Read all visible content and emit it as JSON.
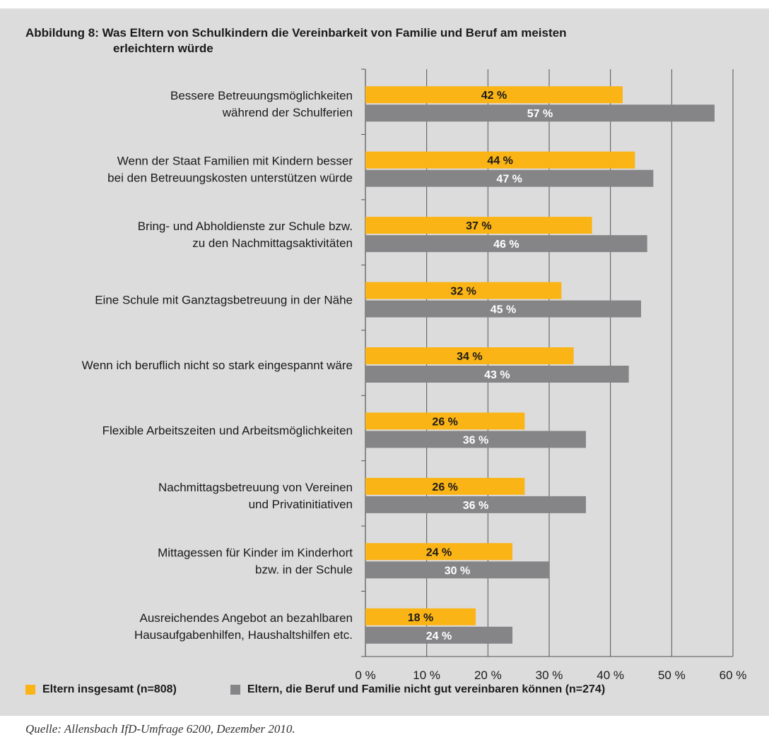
{
  "figure": {
    "title_line1": "Abbildung 8: Was Eltern von Schulkindern die Vereinbarkeit von Familie und Beruf am meisten",
    "title_line2": "erleichtern würde",
    "source": "Quelle: Allensbach IfD-Umfrage 6200, Dezember 2010."
  },
  "colors": {
    "series1": "#fbb415",
    "series2": "#858587",
    "panel": "#dcdcdd",
    "axis": "#555555"
  },
  "chart_data": {
    "type": "bar",
    "orientation": "horizontal",
    "categories": [
      [
        "Bessere Betreuungsmöglichkeiten",
        "während der Schulferien"
      ],
      [
        "Wenn der Staat Familien mit Kindern besser",
        "bei den Betreuungskosten unterstützen würde"
      ],
      [
        "Bring- und Abholdienste zur Schule bzw.",
        "zu den Nachmittagsaktivitäten"
      ],
      [
        "Eine Schule mit Ganztagsbetreuung in der Nähe"
      ],
      [
        "Wenn ich beruflich nicht so stark eingespannt wäre"
      ],
      [
        "Flexible Arbeitszeiten und Arbeitsmöglichkeiten"
      ],
      [
        "Nachmittagsbetreuung von Vereinen",
        "und Privatinitiativen"
      ],
      [
        "Mittagessen für Kinder im Kinderhort",
        "bzw. in der Schule"
      ],
      [
        "Ausreichendes Angebot an bezahlbaren",
        "Hausaufgabenhilfen, Haushaltshilfen etc."
      ]
    ],
    "series": [
      {
        "name": "Eltern insgesamt (n=808)",
        "values": [
          42,
          44,
          37,
          32,
          34,
          26,
          26,
          24,
          18
        ],
        "labels": [
          "42 %",
          "44 %",
          "37 %",
          "32 %",
          "34 %",
          "26 %",
          "26 %",
          "24 %",
          "18 %"
        ]
      },
      {
        "name": "Eltern, die Beruf und Familie nicht gut vereinbaren können (n=274)",
        "values": [
          57,
          47,
          46,
          45,
          43,
          36,
          36,
          30,
          24
        ],
        "labels": [
          "57 %",
          "47 %",
          "46 %",
          "45 %",
          "43 %",
          "36 %",
          "36 %",
          "30 %",
          "24 %"
        ]
      }
    ],
    "x_ticks": [
      "0 %",
      "10 %",
      "20 %",
      "30 %",
      "40 %",
      "50 %",
      "60 %"
    ],
    "xlim": [
      0,
      60
    ],
    "grid": true,
    "legend_position": "bottom"
  }
}
